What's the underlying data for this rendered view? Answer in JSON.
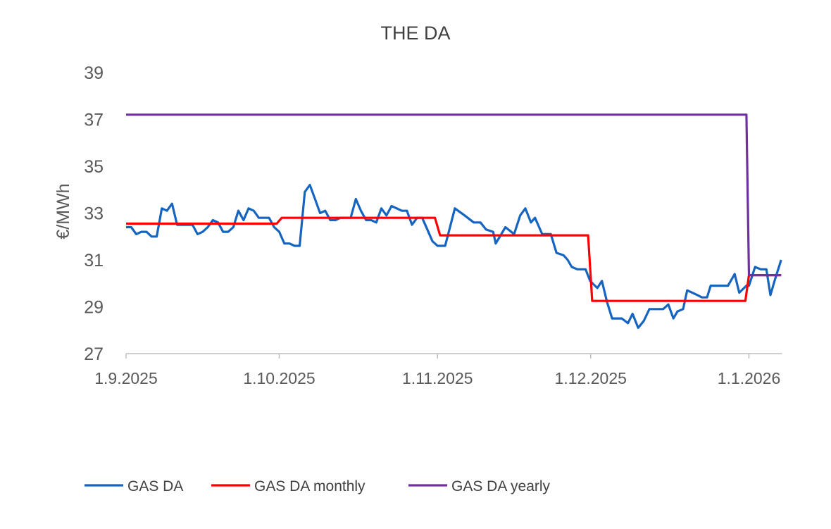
{
  "chart_data": {
    "type": "line",
    "title": "THE DA",
    "xlabel": "",
    "ylabel": "€/MWh",
    "ylim": [
      27,
      39
    ],
    "yticks": [
      "27",
      "29",
      "31",
      "33",
      "35",
      "37",
      "39"
    ],
    "x_unit": "days since 1.9.2025",
    "xlim": [
      0,
      128.5
    ],
    "xticks": [
      {
        "day": 0,
        "label": "1.9.2025"
      },
      {
        "day": 30,
        "label": "1.10.2025"
      },
      {
        "day": 61,
        "label": "1.11.2025"
      },
      {
        "day": 91,
        "label": "1.12.2025"
      },
      {
        "day": 122,
        "label": "1.1.2026"
      }
    ],
    "grid": false,
    "legend_position": "bottom",
    "series": [
      {
        "name": "GAS DA",
        "color": "#1565C0",
        "points": [
          [
            0,
            32.4
          ],
          [
            1,
            32.4
          ],
          [
            2,
            32.1
          ],
          [
            3,
            32.2
          ],
          [
            4,
            32.2
          ],
          [
            5,
            32.0
          ],
          [
            6,
            32.0
          ],
          [
            7,
            33.2
          ],
          [
            8,
            33.1
          ],
          [
            9,
            33.4
          ],
          [
            10,
            32.5
          ],
          [
            11,
            32.5
          ],
          [
            12,
            32.5
          ],
          [
            13,
            32.5
          ],
          [
            14,
            32.1
          ],
          [
            15,
            32.2
          ],
          [
            16,
            32.4
          ],
          [
            17,
            32.7
          ],
          [
            18,
            32.6
          ],
          [
            19,
            32.2
          ],
          [
            20,
            32.2
          ],
          [
            21,
            32.4
          ],
          [
            22,
            33.1
          ],
          [
            23,
            32.7
          ],
          [
            24,
            33.2
          ],
          [
            25,
            33.1
          ],
          [
            26,
            32.8
          ],
          [
            27,
            32.8
          ],
          [
            28,
            32.8
          ],
          [
            29,
            32.4
          ],
          [
            30,
            32.2
          ],
          [
            31,
            31.7
          ],
          [
            32,
            31.7
          ],
          [
            33,
            31.6
          ],
          [
            34,
            31.6
          ],
          [
            35,
            33.9
          ],
          [
            36,
            34.2
          ],
          [
            37,
            33.6
          ],
          [
            38,
            33.0
          ],
          [
            39,
            33.1
          ],
          [
            40,
            32.7
          ],
          [
            41,
            32.7
          ],
          [
            42,
            32.8
          ],
          [
            43,
            32.8
          ],
          [
            44,
            32.8
          ],
          [
            45,
            33.6
          ],
          [
            46,
            33.1
          ],
          [
            47,
            32.7
          ],
          [
            48,
            32.7
          ],
          [
            49,
            32.6
          ],
          [
            50,
            33.2
          ],
          [
            51,
            32.9
          ],
          [
            52,
            33.3
          ],
          [
            53,
            33.2
          ],
          [
            54,
            33.1
          ],
          [
            55,
            33.1
          ],
          [
            56,
            32.5
          ],
          [
            57,
            32.8
          ],
          [
            58,
            32.8
          ],
          [
            59,
            32.3
          ],
          [
            60,
            31.8
          ],
          [
            61,
            31.6
          ],
          [
            62.5,
            31.6
          ],
          [
            64.4,
            33.2
          ],
          [
            66.3,
            32.9
          ],
          [
            68.1,
            32.6
          ],
          [
            69.4,
            32.6
          ],
          [
            70.5,
            32.3
          ],
          [
            71.9,
            32.2
          ],
          [
            72.4,
            31.7
          ],
          [
            74.3,
            32.4
          ],
          [
            76,
            32.1
          ],
          [
            77.2,
            32.9
          ],
          [
            78.2,
            33.2
          ],
          [
            79.3,
            32.6
          ],
          [
            80.1,
            32.8
          ],
          [
            81.5,
            32.1
          ],
          [
            83.2,
            32.1
          ],
          [
            84.3,
            31.3
          ],
          [
            85.7,
            31.2
          ],
          [
            86.5,
            31.0
          ],
          [
            87.3,
            30.7
          ],
          [
            88.4,
            30.6
          ],
          [
            90,
            30.6
          ],
          [
            90.9,
            30.1
          ],
          [
            92.3,
            29.8
          ],
          [
            93.2,
            30.1
          ],
          [
            94.2,
            29.2
          ],
          [
            95.2,
            28.5
          ],
          [
            97.1,
            28.5
          ],
          [
            98.3,
            28.3
          ],
          [
            99.2,
            28.7
          ],
          [
            100.3,
            28.1
          ],
          [
            101.4,
            28.4
          ],
          [
            102.5,
            28.9
          ],
          [
            103.9,
            28.9
          ],
          [
            105.2,
            28.9
          ],
          [
            106.2,
            29.1
          ],
          [
            107.2,
            28.5
          ],
          [
            108,
            28.8
          ],
          [
            109.1,
            28.9
          ],
          [
            109.9,
            29.7
          ],
          [
            110.9,
            29.6
          ],
          [
            111.9,
            29.5
          ],
          [
            112.8,
            29.4
          ],
          [
            113.8,
            29.4
          ],
          [
            114.5,
            29.9
          ],
          [
            116.6,
            29.9
          ],
          [
            117.9,
            29.9
          ],
          [
            119.2,
            30.4
          ],
          [
            120.1,
            29.6
          ],
          [
            121.5,
            29.9
          ],
          [
            122,
            29.9
          ],
          [
            123.2,
            30.7
          ],
          [
            124.3,
            30.6
          ],
          [
            125.4,
            30.6
          ],
          [
            126.2,
            29.5
          ],
          [
            127,
            30.1
          ],
          [
            128.3,
            31.0
          ]
        ]
      },
      {
        "name": "GAS DA monthly",
        "color": "#FF0000",
        "points": [
          [
            0,
            32.55
          ],
          [
            29.5,
            32.55
          ],
          [
            30.5,
            32.8
          ],
          [
            60.5,
            32.8
          ],
          [
            61.5,
            32.05
          ],
          [
            90.5,
            32.05
          ],
          [
            91.3,
            29.25
          ],
          [
            121.3,
            29.25
          ],
          [
            122,
            30.35
          ],
          [
            128.3,
            30.35
          ]
        ]
      },
      {
        "name": "GAS DA yearly",
        "color": "#7030A0",
        "points": [
          [
            0,
            37.2
          ],
          [
            121.5,
            37.2
          ],
          [
            122,
            30.35
          ],
          [
            128.3,
            30.35
          ]
        ]
      }
    ]
  }
}
